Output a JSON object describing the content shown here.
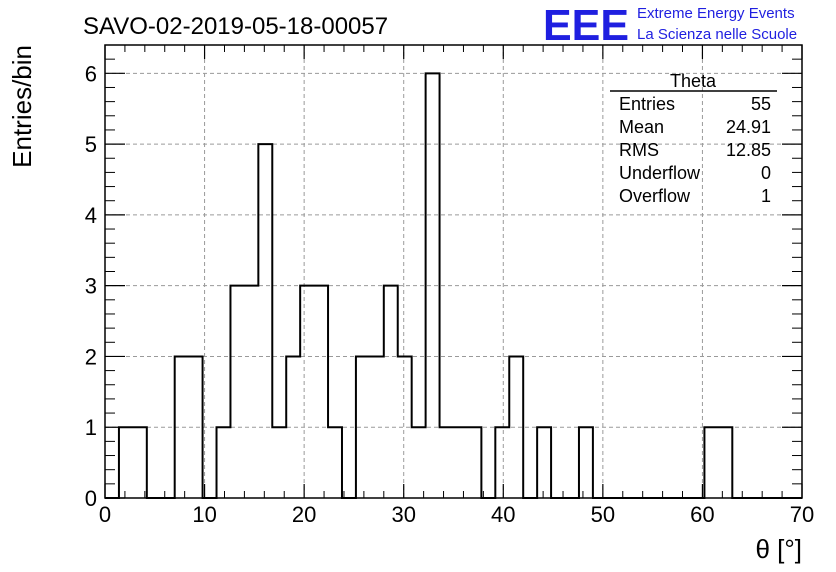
{
  "chart_data": {
    "type": "histogram",
    "title": "SAVO-02-2019-05-18-00057",
    "xlabel": "θ [°]",
    "ylabel": "Entries/bin",
    "xlim": [
      0,
      70
    ],
    "ylim": [
      0,
      6.4
    ],
    "grid": true,
    "x_ticks": [
      "0",
      "10",
      "20",
      "30",
      "40",
      "50",
      "60",
      "70"
    ],
    "y_ticks": [
      "0",
      "1",
      "2",
      "3",
      "4",
      "5",
      "6"
    ],
    "bin_width": 1.4,
    "bin_start": 0,
    "values": [
      0,
      1,
      1,
      0,
      0,
      2,
      2,
      0,
      1,
      3,
      3,
      5,
      1,
      2,
      3,
      3,
      1,
      0,
      2,
      2,
      3,
      2,
      1,
      6,
      1,
      1,
      1,
      0,
      1,
      2,
      0,
      1,
      0,
      0,
      1,
      0,
      0,
      0,
      0,
      0,
      0,
      0,
      0,
      1,
      1,
      0,
      0,
      0,
      0,
      0
    ]
  },
  "logo": {
    "text": "EEE",
    "line1": "Extreme Energy Events",
    "line2": "La Scienza nelle Scuole"
  },
  "stats": {
    "name": "Theta",
    "rows": [
      {
        "label": "Entries",
        "value": "55"
      },
      {
        "label": "Mean",
        "value": "24.91"
      },
      {
        "label": "RMS",
        "value": "12.85"
      },
      {
        "label": "Underflow",
        "value": "0"
      },
      {
        "label": "Overflow",
        "value": "1"
      }
    ]
  }
}
